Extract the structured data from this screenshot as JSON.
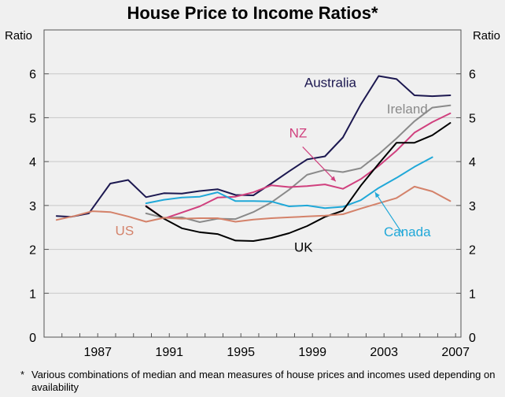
{
  "chart_data": {
    "type": "line",
    "title": "House Price to Income Ratios*",
    "ylabel_left": "Ratio",
    "ylabel_right": "Ratio",
    "ylim": [
      0,
      7
    ],
    "xlim": [
      1984,
      2007.3
    ],
    "y_ticks": [
      0,
      1,
      2,
      3,
      4,
      5,
      6
    ],
    "x_ticks": [
      1987,
      1991,
      1995,
      1999,
      2003,
      2007
    ],
    "grid": true,
    "series": [
      {
        "name": "Australia",
        "color": "#1c1850",
        "points": [
          [
            1984.7,
            2.76
          ],
          [
            1985.5,
            2.74
          ],
          [
            1986.5,
            2.82
          ],
          [
            1987.7,
            3.5
          ],
          [
            1988.7,
            3.58
          ],
          [
            1989.7,
            3.19
          ],
          [
            1990.7,
            3.28
          ],
          [
            1991.7,
            3.27
          ],
          [
            1992.7,
            3.33
          ],
          [
            1993.7,
            3.37
          ],
          [
            1994.7,
            3.24
          ],
          [
            1995.7,
            3.23
          ],
          [
            1996.7,
            3.5
          ],
          [
            1997.7,
            3.78
          ],
          [
            1998.7,
            4.05
          ],
          [
            1999.7,
            4.12
          ],
          [
            2000.7,
            4.55
          ],
          [
            2001.7,
            5.3
          ],
          [
            2002.7,
            5.95
          ],
          [
            2003.7,
            5.88
          ],
          [
            2004.7,
            5.51
          ],
          [
            2005.7,
            5.49
          ],
          [
            2006.7,
            5.51
          ]
        ]
      },
      {
        "name": "Ireland",
        "color": "#8a8a8a",
        "points": [
          [
            1989.7,
            2.82
          ],
          [
            1990.7,
            2.72
          ],
          [
            1991.7,
            2.73
          ],
          [
            1992.7,
            2.62
          ],
          [
            1993.7,
            2.7
          ],
          [
            1994.7,
            2.69
          ],
          [
            1995.7,
            2.85
          ],
          [
            1996.7,
            3.07
          ],
          [
            1997.7,
            3.36
          ],
          [
            1998.7,
            3.7
          ],
          [
            1999.7,
            3.81
          ],
          [
            2000.7,
            3.76
          ],
          [
            2001.7,
            3.85
          ],
          [
            2002.7,
            4.17
          ],
          [
            2003.7,
            4.53
          ],
          [
            2004.7,
            4.92
          ],
          [
            2005.7,
            5.23
          ],
          [
            2006.7,
            5.28
          ]
        ]
      },
      {
        "name": "NZ",
        "color": "#d0407e",
        "points": [
          [
            1989.7,
            2.99
          ],
          [
            1990.7,
            2.7
          ],
          [
            1991.7,
            2.84
          ],
          [
            1992.7,
            2.98
          ],
          [
            1993.7,
            3.18
          ],
          [
            1994.7,
            3.2
          ],
          [
            1995.7,
            3.3
          ],
          [
            1996.7,
            3.46
          ],
          [
            1997.7,
            3.42
          ],
          [
            1998.7,
            3.44
          ],
          [
            1999.7,
            3.48
          ],
          [
            2000.7,
            3.38
          ],
          [
            2001.7,
            3.6
          ],
          [
            2002.7,
            3.9
          ],
          [
            2003.7,
            4.25
          ],
          [
            2004.7,
            4.66
          ],
          [
            2005.7,
            4.9
          ],
          [
            2006.7,
            5.1
          ]
        ]
      },
      {
        "name": "Canada",
        "color": "#20a8d8",
        "points": [
          [
            1989.7,
            3.05
          ],
          [
            1990.7,
            3.13
          ],
          [
            1991.7,
            3.18
          ],
          [
            1992.7,
            3.2
          ],
          [
            1993.7,
            3.3
          ],
          [
            1994.7,
            3.1
          ],
          [
            1995.7,
            3.1
          ],
          [
            1996.7,
            3.09
          ],
          [
            1997.7,
            2.98
          ],
          [
            1998.7,
            3.0
          ],
          [
            1999.7,
            2.94
          ],
          [
            2000.7,
            2.97
          ],
          [
            2001.7,
            3.12
          ],
          [
            2002.7,
            3.4
          ],
          [
            2003.7,
            3.63
          ],
          [
            2004.7,
            3.88
          ],
          [
            2005.7,
            4.1
          ]
        ]
      },
      {
        "name": "UK",
        "color": "#000000",
        "points": [
          [
            1989.7,
            2.98
          ],
          [
            1990.7,
            2.7
          ],
          [
            1991.7,
            2.48
          ],
          [
            1992.7,
            2.39
          ],
          [
            1993.7,
            2.35
          ],
          [
            1994.7,
            2.2
          ],
          [
            1995.7,
            2.19
          ],
          [
            1996.7,
            2.26
          ],
          [
            1997.7,
            2.37
          ],
          [
            1998.7,
            2.53
          ],
          [
            1999.7,
            2.74
          ],
          [
            2000.7,
            2.88
          ],
          [
            2001.7,
            3.45
          ],
          [
            2002.7,
            3.95
          ],
          [
            2003.7,
            4.43
          ],
          [
            2004.7,
            4.43
          ],
          [
            2005.7,
            4.6
          ],
          [
            2006.7,
            4.88
          ]
        ]
      },
      {
        "name": "US",
        "color": "#d4826a",
        "points": [
          [
            1984.7,
            2.67
          ],
          [
            1985.7,
            2.76
          ],
          [
            1986.7,
            2.87
          ],
          [
            1987.7,
            2.85
          ],
          [
            1988.7,
            2.75
          ],
          [
            1989.7,
            2.63
          ],
          [
            1990.7,
            2.72
          ],
          [
            1991.7,
            2.7
          ],
          [
            1992.7,
            2.71
          ],
          [
            1993.7,
            2.71
          ],
          [
            1994.7,
            2.63
          ],
          [
            1995.7,
            2.68
          ],
          [
            1996.7,
            2.71
          ],
          [
            1997.7,
            2.73
          ],
          [
            1998.7,
            2.75
          ],
          [
            1999.7,
            2.77
          ],
          [
            2000.7,
            2.8
          ],
          [
            2001.7,
            2.93
          ],
          [
            2002.7,
            3.05
          ],
          [
            2003.7,
            3.17
          ],
          [
            2004.7,
            3.43
          ],
          [
            2005.7,
            3.32
          ],
          [
            2006.7,
            3.1
          ]
        ]
      }
    ],
    "annotations": [
      {
        "text": "Australia",
        "series": "Australia",
        "color": "#1c1850",
        "anchor": [
          2000.0,
          5.7
        ]
      },
      {
        "text": "Ireland",
        "series": "Ireland",
        "color": "#8a8a8a",
        "anchor": [
          2004.3,
          5.1
        ]
      },
      {
        "text": "NZ",
        "series": "NZ",
        "color": "#d0407e",
        "anchor": [
          1998.2,
          4.55
        ],
        "arrow_to": [
          2000.3,
          3.55
        ]
      },
      {
        "text": "Canada",
        "series": "Canada",
        "color": "#20a8d8",
        "anchor": [
          2004.3,
          2.3
        ],
        "arrow_to": [
          2002.5,
          3.3
        ]
      },
      {
        "text": "UK",
        "series": "UK",
        "color": "#000000",
        "anchor": [
          1998.5,
          1.95
        ]
      },
      {
        "text": "US",
        "series": "US",
        "color": "#d4826a",
        "anchor": [
          1988.5,
          2.32
        ]
      }
    ]
  },
  "footnote": {
    "marker": "*",
    "text": "Various combinations of median and mean measures of house prices and incomes used depending on availability"
  }
}
